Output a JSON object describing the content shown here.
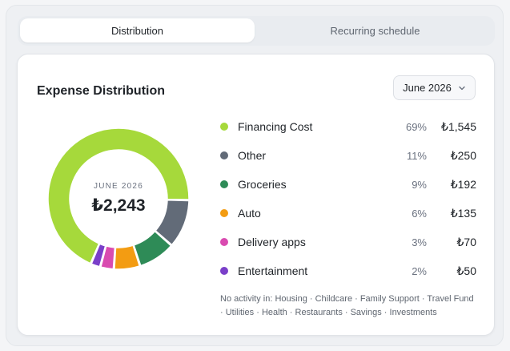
{
  "tabs": [
    {
      "label": "Distribution",
      "active": true
    },
    {
      "label": "Recurring schedule",
      "active": false
    }
  ],
  "card": {
    "title": "Expense Distribution",
    "month_selector": "June 2026"
  },
  "donut": {
    "center_label": "JUNE 2026",
    "center_total": "₺2,243"
  },
  "chart_data": {
    "type": "pie",
    "categories": [
      "Financing Cost",
      "Other",
      "Groceries",
      "Auto",
      "Delivery apps",
      "Entertainment"
    ],
    "values": [
      1545,
      250,
      192,
      135,
      70,
      50
    ],
    "colors": [
      "#a6d93b",
      "#626b78",
      "#2e8b57",
      "#f39c12",
      "#d94bb0",
      "#7a3fc9"
    ]
  },
  "legend": [
    {
      "label": "Financing Cost",
      "pct": "69%",
      "amount": "₺1,545",
      "color": "#a6d93b"
    },
    {
      "label": "Other",
      "pct": "11%",
      "amount": "₺250",
      "color": "#626b78"
    },
    {
      "label": "Groceries",
      "pct": "9%",
      "amount": "₺192",
      "color": "#2e8b57"
    },
    {
      "label": "Auto",
      "pct": "6%",
      "amount": "₺135",
      "color": "#f39c12"
    },
    {
      "label": "Delivery apps",
      "pct": "3%",
      "amount": "₺70",
      "color": "#d94bb0"
    },
    {
      "label": "Entertainment",
      "pct": "2%",
      "amount": "₺50",
      "color": "#7a3fc9"
    }
  ],
  "no_activity_text": "No activity in: Housing · Childcare · Family Support · Travel Fund · Utilities · Health · Restaurants · Savings · Investments"
}
